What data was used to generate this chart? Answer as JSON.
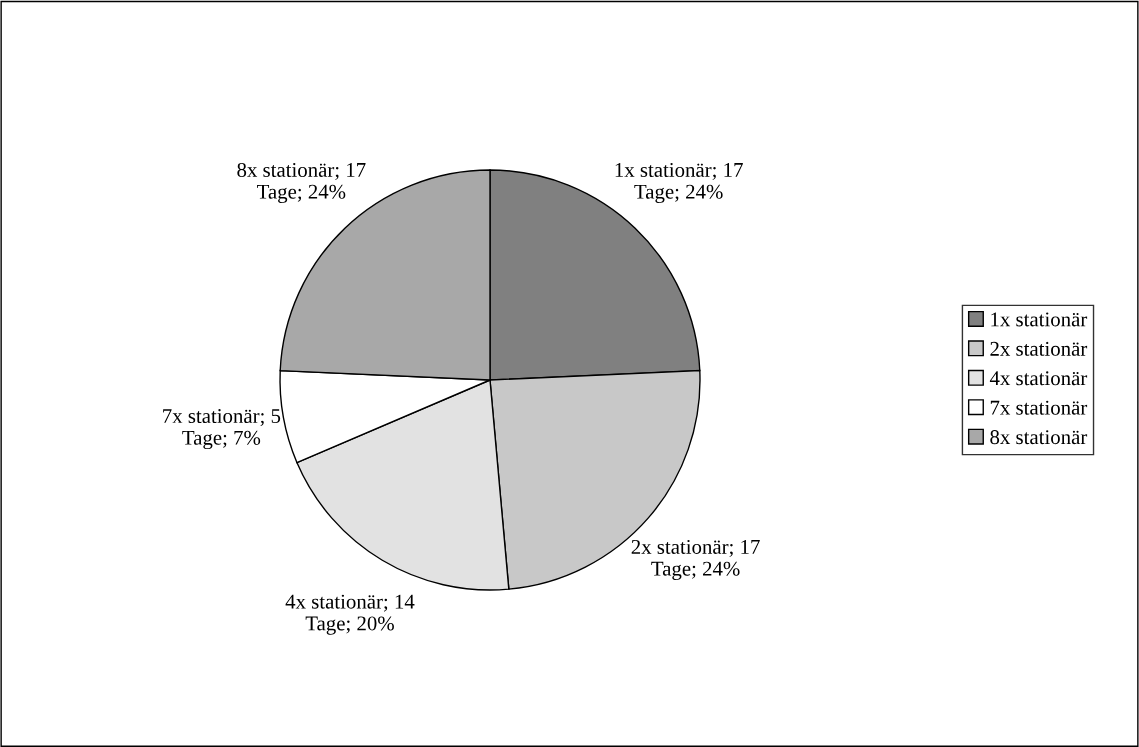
{
  "chart_data": {
    "type": "pie",
    "categories": [
      "1x stationär",
      "2x stationär",
      "4x stationär",
      "7x stationär",
      "8x stationär"
    ],
    "values": [
      17,
      17,
      14,
      5,
      17
    ],
    "colors": [
      "#808080",
      "#c8c8c8",
      "#e2e2e2",
      "#ffffff",
      "#a8a8a8"
    ],
    "value_labels": [
      "1x stationär; 17\nTage; 24%",
      "2x stationär; 17\nTage; 24%",
      "4x stationär; 14\nTage; 20%",
      "7x stationär; 5\nTage; 7%",
      "8x stationär; 17\nTage; 24%"
    ],
    "legend": "right"
  }
}
